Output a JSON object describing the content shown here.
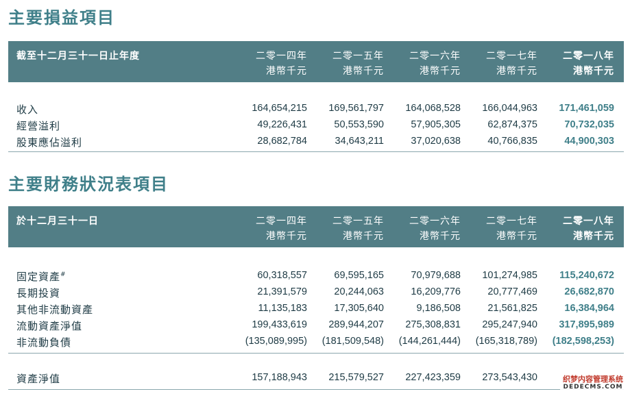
{
  "income": {
    "title": "主要損益項目",
    "header_label": "截至十二月三十一日止年度",
    "columns": [
      {
        "year": "二零一四年",
        "unit": "港幣千元"
      },
      {
        "year": "二零一五年",
        "unit": "港幣千元"
      },
      {
        "year": "二零一六年",
        "unit": "港幣千元"
      },
      {
        "year": "二零一七年",
        "unit": "港幣千元"
      },
      {
        "year": "二零一八年",
        "unit": "港幣千元"
      }
    ],
    "rows": [
      {
        "label": "收入",
        "values": [
          "164,654,215",
          "169,561,797",
          "164,068,528",
          "166,044,963",
          "171,461,059"
        ]
      },
      {
        "label": "經營溢利",
        "values": [
          "49,226,431",
          "50,553,590",
          "57,905,305",
          "62,874,375",
          "70,732,035"
        ]
      },
      {
        "label": "股東應佔溢利",
        "values": [
          "28,682,784",
          "34,643,211",
          "37,020,638",
          "40,766,835",
          "44,900,303"
        ]
      }
    ]
  },
  "balance": {
    "title": "主要財務狀況表項目",
    "header_label": "於十二月三十一日",
    "columns": [
      {
        "year": "二零一四年",
        "unit": "港幣千元"
      },
      {
        "year": "二零一五年",
        "unit": "港幣千元"
      },
      {
        "year": "二零一六年",
        "unit": "港幣千元"
      },
      {
        "year": "二零一七年",
        "unit": "港幣千元"
      },
      {
        "year": "二零一八年",
        "unit": "港幣千元"
      }
    ],
    "rows": [
      {
        "label": "固定資產",
        "note": "#",
        "values": [
          "60,318,557",
          "69,595,165",
          "70,979,688",
          "101,274,985",
          "115,240,672"
        ]
      },
      {
        "label": "長期投資",
        "values": [
          "21,391,579",
          "20,244,063",
          "16,209,776",
          "20,777,469",
          "26,682,870"
        ]
      },
      {
        "label": "其他非流動資產",
        "values": [
          "11,135,183",
          "17,305,640",
          "9,186,508",
          "21,561,825",
          "16,384,964"
        ]
      },
      {
        "label": "流動資產淨值",
        "values": [
          "199,433,619",
          "289,944,207",
          "275,308,831",
          "295,247,940",
          "317,895,989"
        ]
      },
      {
        "label": "非流動負債",
        "values": [
          "(135,089,995)",
          "(181,509,548)",
          "(144,261,444)",
          "(165,318,789)",
          "(182,598,253)"
        ]
      }
    ],
    "total": {
      "label": "資產淨值",
      "values": [
        "157,188,943",
        "215,579,527",
        "227,423,359",
        "273,543,430",
        ""
      ]
    }
  },
  "watermark": {
    "line1": "织梦内容管理系统",
    "line2": "DEDECMS.COM"
  },
  "colors": {
    "accent": "#3f7f89",
    "header_bg": "#527e86",
    "text": "#1d3a44"
  }
}
